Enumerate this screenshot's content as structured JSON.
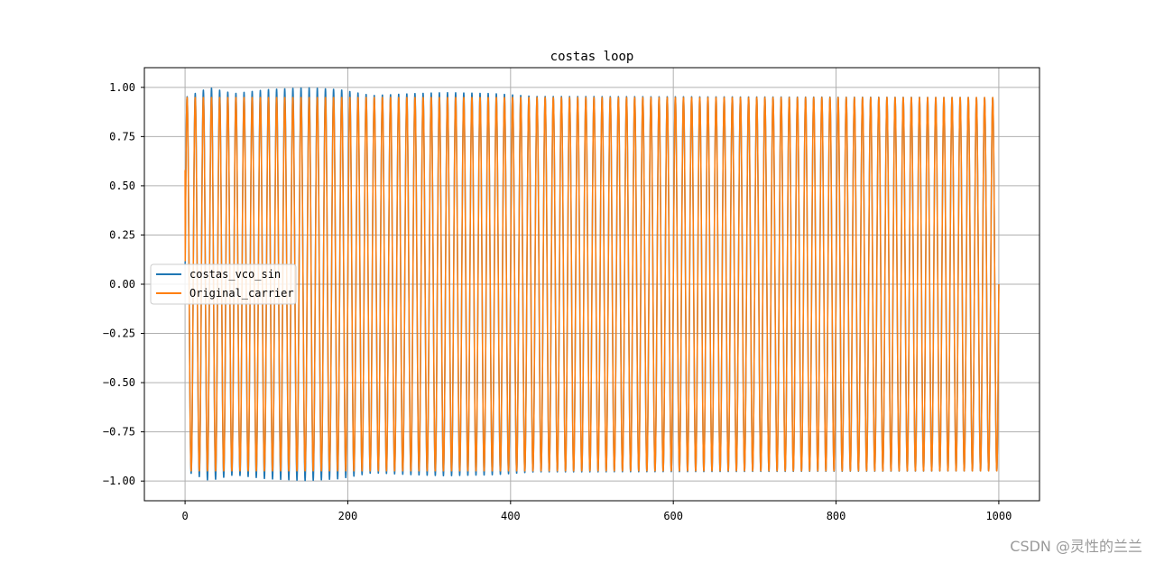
{
  "chart_data": {
    "type": "line",
    "title": "costas loop",
    "xlabel": "",
    "ylabel": "",
    "xlim": [
      -50,
      1050
    ],
    "ylim": [
      -1.1,
      1.1
    ],
    "x_ticks": [
      0,
      200,
      400,
      600,
      800,
      1000
    ],
    "x_tick_labels": [
      "0",
      "200",
      "400",
      "600",
      "800",
      "1000"
    ],
    "y_ticks": [
      1.0,
      0.75,
      0.5,
      0.25,
      0.0,
      -0.25,
      -0.5,
      -0.75,
      -1.0
    ],
    "y_tick_labels": [
      "1.00",
      "0.75",
      "0.50",
      "0.25",
      "0.00",
      "−0.25",
      "−0.50",
      "−0.75",
      "−1.00"
    ],
    "grid": true,
    "legend_position": "center-left",
    "x_range": [
      0,
      1000
    ],
    "series": [
      {
        "name": "costas_vco_sin",
        "color": "#1f77b4",
        "periods": 100,
        "initial_value": 0.1,
        "amplitude_by_x": [
          [
            0,
            0.95
          ],
          [
            30,
            1.0
          ],
          [
            60,
            0.97
          ],
          [
            100,
            0.99
          ],
          [
            150,
            1.0
          ],
          [
            190,
            0.99
          ],
          [
            230,
            0.96
          ],
          [
            280,
            0.97
          ],
          [
            320,
            0.975
          ],
          [
            380,
            0.97
          ],
          [
            430,
            0.955
          ],
          [
            500,
            0.955
          ],
          [
            1000,
            0.95
          ]
        ]
      },
      {
        "name": "Original_carrier",
        "color": "#ff7f0e",
        "periods": 100,
        "initial_value": 0.58,
        "amplitude_by_x": [
          [
            0,
            0.95
          ],
          [
            1000,
            0.95
          ]
        ]
      }
    ]
  },
  "watermark": "CSDN @灵性的兰兰"
}
